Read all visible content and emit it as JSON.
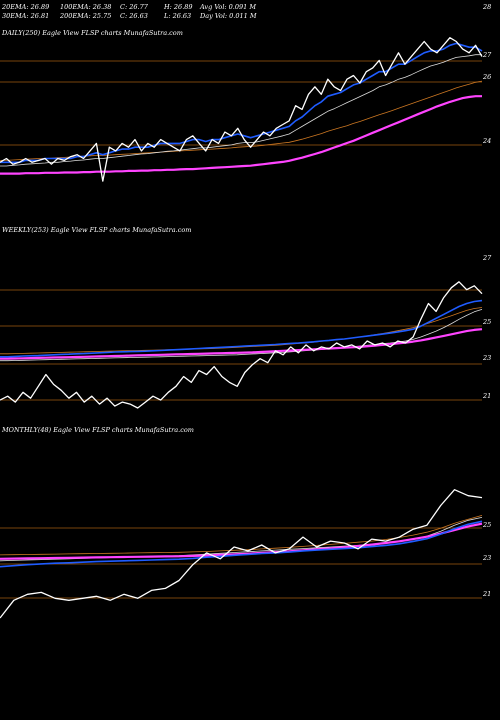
{
  "header": {
    "ema20": "20EMA: 26.89",
    "ema100": "100EMA: 26.38",
    "close_top": "C: 26.77",
    "high": "H: 26.89",
    "avg_vol": "Avg Vol: 0.091 M",
    "ema30": "30EMA: 26.81",
    "ema200": "200EMA: 25.75",
    "close_bottom": "C: 26.63",
    "low": "L: 26.63",
    "day_vol": "Day Vol: 0.011 M"
  },
  "colors": {
    "background": "#000000",
    "price": "#ffffff",
    "ema_fast": "#1f5cff",
    "ema_slow": "#ff44ff",
    "ema_mid": "#cc7722",
    "ema_white": "#dddddd",
    "gridline": "#a05a10"
  },
  "chart_data": [
    {
      "type": "line",
      "title": "DAILY(250) Eagle View FLSP charts MunafaSutra.com",
      "ylim": [
        23,
        28.3
      ],
      "yticks": [
        "28",
        "27",
        "26",
        "24"
      ],
      "levels": [
        27,
        26,
        24
      ],
      "series": [
        {
          "role": "price",
          "values": [
            24.0,
            24.1,
            23.95,
            24.0,
            24.1,
            24.0,
            24.05,
            24.1,
            23.95,
            24.1,
            24.05,
            24.15,
            24.2,
            24.1,
            24.3,
            24.5,
            23.5,
            24.4,
            24.3,
            24.5,
            24.4,
            24.6,
            24.3,
            24.5,
            24.4,
            24.6,
            24.5,
            24.4,
            24.3,
            24.6,
            24.7,
            24.5,
            24.3,
            24.6,
            24.5,
            24.8,
            24.7,
            24.9,
            24.6,
            24.4,
            24.6,
            24.8,
            24.7,
            24.9,
            25.0,
            25.1,
            25.5,
            25.4,
            25.8,
            26.0,
            25.8,
            26.2,
            26.0,
            25.9,
            26.2,
            26.3,
            26.1,
            26.4,
            26.5,
            26.7,
            26.3,
            26.6,
            26.9,
            26.6,
            26.8,
            27.0,
            27.2,
            27.0,
            26.9,
            27.1,
            27.3,
            27.2,
            27.0,
            26.9,
            27.1,
            26.8
          ]
        },
        {
          "role": "ema_fast",
          "values": [
            24.0,
            24.0,
            24.0,
            24.0,
            24.05,
            24.05,
            24.05,
            24.1,
            24.1,
            24.1,
            24.1,
            24.1,
            24.15,
            24.15,
            24.2,
            24.25,
            24.2,
            24.25,
            24.3,
            24.35,
            24.35,
            24.4,
            24.4,
            24.4,
            24.45,
            24.5,
            24.5,
            24.5,
            24.5,
            24.55,
            24.6,
            24.6,
            24.55,
            24.6,
            24.6,
            24.65,
            24.7,
            24.75,
            24.7,
            24.65,
            24.7,
            24.75,
            24.8,
            24.85,
            24.9,
            24.95,
            25.1,
            25.2,
            25.35,
            25.5,
            25.6,
            25.75,
            25.8,
            25.85,
            25.95,
            26.05,
            26.1,
            26.2,
            26.3,
            26.4,
            26.4,
            26.5,
            26.6,
            26.6,
            26.7,
            26.8,
            26.9,
            26.95,
            26.95,
            27.0,
            27.1,
            27.15,
            27.1,
            27.05,
            27.05,
            26.95
          ]
        },
        {
          "role": "ema_white",
          "values": [
            23.9,
            23.9,
            23.92,
            23.93,
            23.95,
            23.96,
            23.97,
            23.98,
            24.0,
            24.0,
            24.02,
            24.03,
            24.05,
            24.06,
            24.08,
            24.1,
            24.1,
            24.12,
            24.14,
            24.16,
            24.18,
            24.2,
            24.22,
            24.23,
            24.25,
            24.27,
            24.29,
            24.3,
            24.32,
            24.34,
            24.36,
            24.38,
            24.38,
            24.4,
            24.42,
            24.44,
            24.46,
            24.5,
            24.52,
            24.52,
            24.54,
            24.58,
            24.62,
            24.66,
            24.7,
            24.75,
            24.85,
            24.95,
            25.05,
            25.15,
            25.25,
            25.35,
            25.42,
            25.5,
            25.58,
            25.66,
            25.74,
            25.82,
            25.9,
            26.0,
            26.05,
            26.12,
            26.2,
            26.25,
            26.32,
            26.4,
            26.48,
            26.55,
            26.6,
            26.65,
            26.72,
            26.78,
            26.8,
            26.82,
            26.85,
            26.85
          ]
        },
        {
          "role": "ema_mid",
          "values": [
            24.05,
            24.05,
            24.06,
            24.07,
            24.08,
            24.09,
            24.1,
            24.1,
            24.11,
            24.12,
            24.13,
            24.14,
            24.15,
            24.16,
            24.17,
            24.18,
            24.18,
            24.19,
            24.2,
            24.21,
            24.22,
            24.23,
            24.24,
            24.25,
            24.26,
            24.27,
            24.28,
            24.29,
            24.3,
            24.31,
            24.32,
            24.33,
            24.34,
            24.35,
            24.36,
            24.37,
            24.38,
            24.4,
            24.41,
            24.42,
            24.43,
            24.45,
            24.47,
            24.49,
            24.51,
            24.53,
            24.57,
            24.61,
            24.66,
            24.71,
            24.76,
            24.82,
            24.87,
            24.92,
            24.97,
            25.03,
            25.08,
            25.14,
            25.2,
            25.26,
            25.31,
            25.37,
            25.43,
            25.49,
            25.55,
            25.61,
            25.67,
            25.73,
            25.79,
            25.85,
            25.91,
            25.97,
            26.02,
            26.07,
            26.12,
            26.15
          ]
        },
        {
          "role": "ema_slow",
          "values": [
            23.7,
            23.7,
            23.7,
            23.7,
            23.71,
            23.71,
            23.71,
            23.72,
            23.72,
            23.72,
            23.73,
            23.73,
            23.73,
            23.74,
            23.74,
            23.75,
            23.75,
            23.75,
            23.76,
            23.76,
            23.77,
            23.77,
            23.78,
            23.78,
            23.79,
            23.79,
            23.8,
            23.8,
            23.81,
            23.82,
            23.82,
            23.83,
            23.84,
            23.85,
            23.86,
            23.87,
            23.88,
            23.89,
            23.9,
            23.91,
            23.93,
            23.95,
            23.97,
            23.99,
            24.01,
            24.04,
            24.08,
            24.12,
            24.17,
            24.22,
            24.27,
            24.33,
            24.39,
            24.45,
            24.51,
            24.57,
            24.64,
            24.71,
            24.78,
            24.85,
            24.92,
            24.99,
            25.06,
            25.13,
            25.2,
            25.27,
            25.34,
            25.41,
            25.48,
            25.54,
            25.6,
            25.65,
            25.7,
            25.73,
            25.75,
            25.75
          ]
        }
      ]
    },
    {
      "type": "line",
      "title": "WEEKLY(253) Eagle View FLSP charts MunafaSutra.com",
      "ylim": [
        20.6,
        27.7
      ],
      "yticks": [
        "27",
        "25",
        "23",
        "21"
      ],
      "levels": [
        27,
        25.8,
        23,
        21
      ],
      "series": [
        {
          "role": "price",
          "values": [
            21.1,
            21.3,
            21.0,
            21.5,
            21.2,
            21.8,
            22.4,
            21.9,
            21.6,
            21.2,
            21.5,
            21.0,
            21.3,
            20.9,
            21.2,
            20.8,
            21.0,
            20.9,
            20.7,
            21.0,
            21.3,
            21.1,
            21.5,
            21.8,
            22.3,
            22.0,
            22.6,
            22.4,
            22.8,
            22.3,
            22.0,
            21.8,
            22.5,
            22.9,
            23.2,
            23.0,
            23.6,
            23.4,
            23.8,
            23.5,
            23.9,
            23.6,
            23.8,
            23.7,
            24.0,
            23.8,
            23.9,
            23.7,
            24.1,
            23.9,
            24.0,
            23.8,
            24.1,
            24.0,
            24.3,
            25.2,
            26.0,
            25.6,
            26.3,
            26.8,
            27.1,
            26.7,
            26.9,
            26.5
          ]
        },
        {
          "role": "ema_fast",
          "values": [
            23.3,
            23.3,
            23.32,
            23.34,
            23.35,
            23.36,
            23.38,
            23.4,
            23.42,
            23.43,
            23.45,
            23.46,
            23.48,
            23.5,
            23.52,
            23.54,
            23.55,
            23.56,
            23.57,
            23.58,
            23.6,
            23.62,
            23.64,
            23.66,
            23.68,
            23.7,
            23.72,
            23.74,
            23.76,
            23.78,
            23.8,
            23.82,
            23.84,
            23.86,
            23.88,
            23.9,
            23.92,
            23.95,
            23.98,
            24.0,
            24.03,
            24.06,
            24.1,
            24.13,
            24.17,
            24.2,
            24.25,
            24.3,
            24.35,
            24.4,
            24.45,
            24.5,
            24.56,
            24.62,
            24.7,
            24.85,
            25.05,
            25.25,
            25.45,
            25.65,
            25.85,
            26.0,
            26.1,
            26.15
          ]
        },
        {
          "role": "ema_white",
          "values": [
            23.1,
            23.1,
            23.11,
            23.12,
            23.13,
            23.14,
            23.15,
            23.16,
            23.17,
            23.18,
            23.19,
            23.2,
            23.21,
            23.22,
            23.23,
            23.24,
            23.25,
            23.26,
            23.27,
            23.28,
            23.29,
            23.3,
            23.31,
            23.32,
            23.33,
            23.34,
            23.35,
            23.36,
            23.37,
            23.38,
            23.39,
            23.4,
            23.42,
            23.44,
            23.46,
            23.48,
            23.5,
            23.52,
            23.55,
            23.58,
            23.61,
            23.64,
            23.67,
            23.7,
            23.73,
            23.76,
            23.8,
            23.84,
            23.88,
            23.92,
            23.96,
            24.0,
            24.05,
            24.1,
            24.18,
            24.3,
            24.45,
            24.6,
            24.78,
            24.98,
            25.2,
            25.4,
            25.58,
            25.7
          ]
        },
        {
          "role": "ema_mid",
          "values": [
            23.45,
            23.45,
            23.46,
            23.47,
            23.48,
            23.49,
            23.5,
            23.51,
            23.52,
            23.53,
            23.54,
            23.55,
            23.56,
            23.57,
            23.58,
            23.59,
            23.6,
            23.61,
            23.62,
            23.63,
            23.64,
            23.65,
            23.66,
            23.67,
            23.68,
            23.69,
            23.7,
            23.71,
            23.72,
            23.74,
            23.76,
            23.78,
            23.8,
            23.82,
            23.84,
            23.86,
            23.88,
            23.91,
            23.94,
            23.97,
            24.0,
            24.04,
            24.08,
            24.12,
            24.16,
            24.2,
            24.25,
            24.3,
            24.36,
            24.42,
            24.48,
            24.55,
            24.62,
            24.7,
            24.78,
            24.88,
            25.0,
            25.12,
            25.25,
            25.38,
            25.52,
            25.65,
            25.75,
            25.8
          ]
        },
        {
          "role": "ema_slow",
          "values": [
            23.2,
            23.2,
            23.21,
            23.22,
            23.23,
            23.24,
            23.25,
            23.26,
            23.27,
            23.28,
            23.29,
            23.3,
            23.31,
            23.32,
            23.33,
            23.34,
            23.35,
            23.36,
            23.37,
            23.38,
            23.39,
            23.4,
            23.41,
            23.42,
            23.43,
            23.44,
            23.45,
            23.46,
            23.47,
            23.48,
            23.49,
            23.5,
            23.51,
            23.52,
            23.54,
            23.56,
            23.58,
            23.6,
            23.62,
            23.64,
            23.66,
            23.68,
            23.7,
            23.72,
            23.74,
            23.76,
            23.78,
            23.8,
            23.83,
            23.86,
            23.9,
            23.94,
            23.98,
            24.02,
            24.07,
            24.13,
            24.2,
            24.28,
            24.36,
            24.44,
            24.52,
            24.6,
            24.66,
            24.7
          ]
        }
      ]
    },
    {
      "type": "line",
      "title": "MONTHLY(48) Eagle View FLSP charts MunafaSutra.com",
      "ylim": [
        20,
        27.6
      ],
      "yticks": [
        "25",
        "23",
        "21"
      ],
      "levels": [
        25.3,
        23,
        21
      ],
      "series": [
        {
          "role": "price",
          "values": [
            20.1,
            21.0,
            21.3,
            21.4,
            21.1,
            21.0,
            21.1,
            21.2,
            21.0,
            21.3,
            21.1,
            21.5,
            21.6,
            22.0,
            22.8,
            23.4,
            23.1,
            23.7,
            23.5,
            23.8,
            23.4,
            23.6,
            24.2,
            23.7,
            24.0,
            23.9,
            23.6,
            24.1,
            24.0,
            24.2,
            24.6,
            24.8,
            25.8,
            26.6,
            26.3,
            26.2
          ]
        },
        {
          "role": "ema_fast",
          "values": [
            22.7,
            22.75,
            22.8,
            22.84,
            22.88,
            22.9,
            22.93,
            22.96,
            22.98,
            23.0,
            23.02,
            23.04,
            23.06,
            23.08,
            23.12,
            23.18,
            23.22,
            23.28,
            23.32,
            23.37,
            23.4,
            23.44,
            23.5,
            23.54,
            23.58,
            23.62,
            23.66,
            23.72,
            23.78,
            23.86,
            23.98,
            24.12,
            24.35,
            24.62,
            24.85,
            25.0
          ]
        },
        {
          "role": "ema_white",
          "values": [
            23.0,
            23.02,
            23.04,
            23.06,
            23.08,
            23.1,
            23.12,
            23.14,
            23.16,
            23.18,
            23.2,
            23.22,
            23.24,
            23.26,
            23.3,
            23.34,
            23.38,
            23.42,
            23.46,
            23.5,
            23.54,
            23.58,
            23.62,
            23.66,
            23.7,
            23.74,
            23.78,
            23.84,
            23.9,
            23.98,
            24.1,
            24.25,
            24.5,
            24.8,
            25.05,
            25.2
          ]
        },
        {
          "role": "ema_mid",
          "values": [
            23.3,
            23.31,
            23.32,
            23.33,
            23.34,
            23.35,
            23.36,
            23.37,
            23.38,
            23.39,
            23.4,
            23.41,
            23.42,
            23.43,
            23.45,
            23.47,
            23.5,
            23.53,
            23.56,
            23.6,
            23.64,
            23.68,
            23.73,
            23.78,
            23.83,
            23.88,
            23.94,
            24.0,
            24.08,
            24.18,
            24.3,
            24.45,
            24.65,
            24.9,
            25.1,
            25.3
          ]
        },
        {
          "role": "ema_slow",
          "values": [
            23.1,
            23.11,
            23.12,
            23.13,
            23.14,
            23.15,
            23.16,
            23.17,
            23.18,
            23.19,
            23.2,
            23.21,
            23.22,
            23.23,
            23.25,
            23.27,
            23.3,
            23.33,
            23.36,
            23.4,
            23.44,
            23.48,
            23.53,
            23.58,
            23.63,
            23.69,
            23.75,
            23.82,
            23.9,
            23.99,
            24.1,
            24.22,
            24.38,
            24.56,
            24.74,
            24.88
          ]
        }
      ]
    }
  ]
}
